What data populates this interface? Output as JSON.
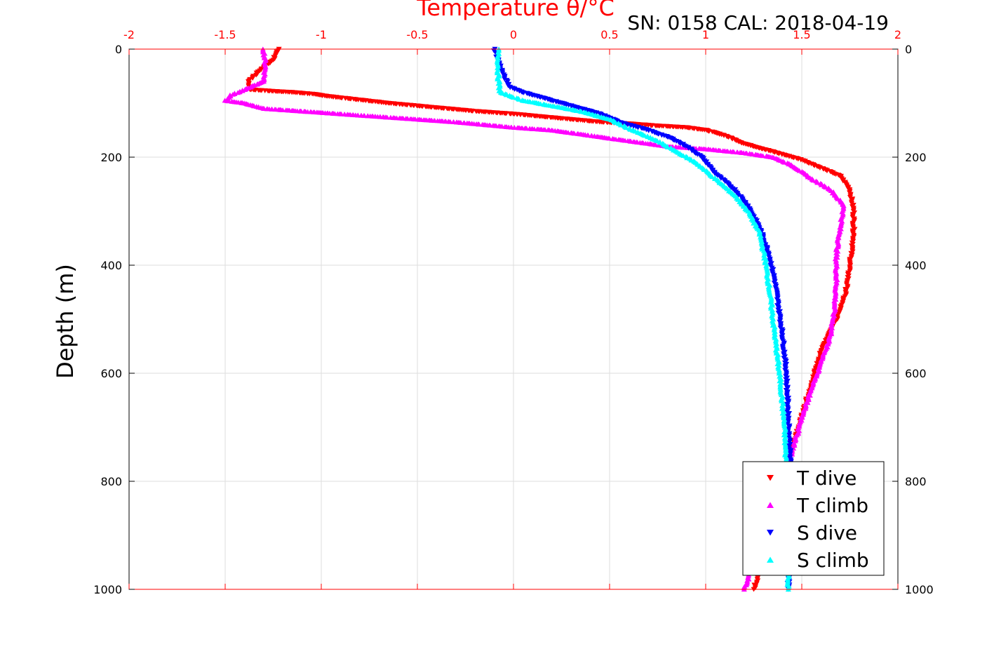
{
  "chart_data": {
    "type": "scatter",
    "title": "Temperature θ/°C",
    "annotation": "SN: 0158  CAL: 2018-04-19",
    "xlabel": "Temperature θ/°C",
    "ylabel": "Depth (m)",
    "xlim": [
      -2,
      2
    ],
    "ylim": [
      1000,
      0
    ],
    "xticks": [
      "-2",
      "-1.5",
      "-1",
      "-0.5",
      "0",
      "0.5",
      "1",
      "1.5",
      "2"
    ],
    "yticks": [
      "0",
      "200",
      "400",
      "600",
      "800",
      "1000"
    ],
    "grid": true,
    "legend_position": "bottom-right",
    "colors": {
      "axis_top": "#ff0000",
      "T dive": "#ff0000",
      "T climb": "#ff00ff",
      "S dive": "#0000ff",
      "S climb": "#00ffff"
    },
    "series": [
      {
        "name": "T dive",
        "marker": "triangle-down",
        "color": "#ff0000",
        "points": [
          [
            -1.22,
            0
          ],
          [
            -1.25,
            20
          ],
          [
            -1.32,
            40
          ],
          [
            -1.38,
            60
          ],
          [
            -1.37,
            75
          ],
          [
            -1.25,
            78
          ],
          [
            -1.15,
            80
          ],
          [
            -1.05,
            83
          ],
          [
            -0.95,
            88
          ],
          [
            -0.85,
            92
          ],
          [
            -0.75,
            96
          ],
          [
            -0.65,
            100
          ],
          [
            -0.5,
            105
          ],
          [
            -0.35,
            110
          ],
          [
            -0.2,
            115
          ],
          [
            0,
            120
          ],
          [
            0.15,
            125
          ],
          [
            0.3,
            130
          ],
          [
            0.45,
            135
          ],
          [
            0.6,
            138
          ],
          [
            0.75,
            142
          ],
          [
            0.9,
            145
          ],
          [
            1.0,
            150
          ],
          [
            1.1,
            160
          ],
          [
            1.2,
            175
          ],
          [
            1.3,
            185
          ],
          [
            1.4,
            195
          ],
          [
            1.5,
            205
          ],
          [
            1.6,
            220
          ],
          [
            1.7,
            235
          ],
          [
            1.75,
            260
          ],
          [
            1.77,
            300
          ],
          [
            1.77,
            350
          ],
          [
            1.75,
            400
          ],
          [
            1.73,
            450
          ],
          [
            1.68,
            500
          ],
          [
            1.6,
            560
          ],
          [
            1.55,
            620
          ],
          [
            1.5,
            680
          ],
          [
            1.45,
            740
          ],
          [
            1.42,
            800
          ],
          [
            1.35,
            900
          ],
          [
            1.25,
            1000
          ]
        ]
      },
      {
        "name": "T climb",
        "marker": "triangle-up",
        "color": "#ff00ff",
        "points": [
          [
            -1.3,
            0
          ],
          [
            -1.29,
            30
          ],
          [
            -1.3,
            60
          ],
          [
            -1.4,
            75
          ],
          [
            -1.47,
            85
          ],
          [
            -1.5,
            95
          ],
          [
            -1.4,
            100
          ],
          [
            -1.3,
            110
          ],
          [
            -1.1,
            115
          ],
          [
            -0.9,
            120
          ],
          [
            -0.7,
            125
          ],
          [
            -0.5,
            130
          ],
          [
            -0.3,
            135
          ],
          [
            -0.15,
            140
          ],
          [
            0,
            145
          ],
          [
            0.2,
            150
          ],
          [
            0.4,
            160
          ],
          [
            0.6,
            170
          ],
          [
            0.8,
            180
          ],
          [
            1.0,
            185
          ],
          [
            1.2,
            192
          ],
          [
            1.35,
            200
          ],
          [
            1.45,
            215
          ],
          [
            1.55,
            240
          ],
          [
            1.65,
            260
          ],
          [
            1.72,
            290
          ],
          [
            1.7,
            330
          ],
          [
            1.68,
            380
          ],
          [
            1.68,
            430
          ],
          [
            1.67,
            480
          ],
          [
            1.65,
            530
          ],
          [
            1.58,
            600
          ],
          [
            1.52,
            660
          ],
          [
            1.47,
            720
          ],
          [
            1.42,
            780
          ],
          [
            1.35,
            860
          ],
          [
            1.2,
            1000
          ]
        ]
      },
      {
        "name": "S dive",
        "marker": "triangle-down",
        "color": "#0000ff",
        "points": [
          [
            -0.1,
            0
          ],
          [
            -0.08,
            20
          ],
          [
            -0.05,
            50
          ],
          [
            -0.02,
            70
          ],
          [
            0.05,
            80
          ],
          [
            0.15,
            90
          ],
          [
            0.25,
            100
          ],
          [
            0.35,
            110
          ],
          [
            0.45,
            120
          ],
          [
            0.55,
            135
          ],
          [
            0.7,
            150
          ],
          [
            0.82,
            165
          ],
          [
            0.9,
            180
          ],
          [
            0.98,
            200
          ],
          [
            1.05,
            230
          ],
          [
            1.15,
            260
          ],
          [
            1.22,
            290
          ],
          [
            1.28,
            330
          ],
          [
            1.33,
            380
          ],
          [
            1.36,
            430
          ],
          [
            1.38,
            480
          ],
          [
            1.4,
            530
          ],
          [
            1.42,
            600
          ],
          [
            1.43,
            680
          ],
          [
            1.44,
            760
          ],
          [
            1.44,
            850
          ],
          [
            1.43,
            1000
          ]
        ]
      },
      {
        "name": "S climb",
        "marker": "triangle-up",
        "color": "#00ffff",
        "points": [
          [
            -0.08,
            0
          ],
          [
            -0.08,
            20
          ],
          [
            -0.08,
            50
          ],
          [
            -0.07,
            80
          ],
          [
            0.05,
            95
          ],
          [
            0.2,
            105
          ],
          [
            0.35,
            115
          ],
          [
            0.5,
            130
          ],
          [
            0.62,
            150
          ],
          [
            0.75,
            170
          ],
          [
            0.85,
            190
          ],
          [
            0.95,
            210
          ],
          [
            1.05,
            240
          ],
          [
            1.15,
            270
          ],
          [
            1.22,
            300
          ],
          [
            1.28,
            340
          ],
          [
            1.31,
            390
          ],
          [
            1.33,
            440
          ],
          [
            1.35,
            500
          ],
          [
            1.37,
            560
          ],
          [
            1.39,
            620
          ],
          [
            1.41,
            700
          ],
          [
            1.42,
            780
          ],
          [
            1.43,
            880
          ],
          [
            1.43,
            1000
          ]
        ]
      }
    ]
  }
}
